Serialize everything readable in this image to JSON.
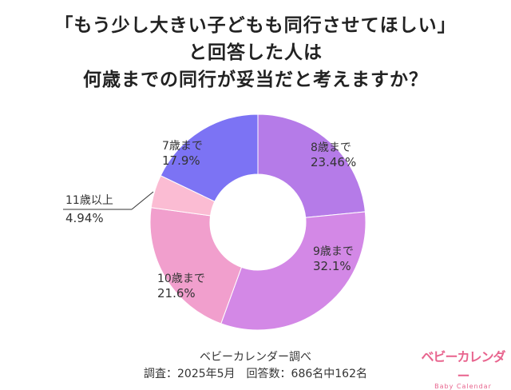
{
  "chart_data": {
    "type": "pie",
    "title_lines": [
      "「もう少し大きい子どもも同行させてほしい」",
      "と回答した人は",
      "何歳までの同行が妥当だと考えますか？"
    ],
    "slices": [
      {
        "label": "8歳まで",
        "value": 23.46,
        "value_text": "23.46%",
        "color": "#b57be8"
      },
      {
        "label": "9歳まで",
        "value": 32.1,
        "value_text": "32.1%",
        "color": "#d388e6"
      },
      {
        "label": "10歳まで",
        "value": 21.6,
        "value_text": "21.6%",
        "color": "#f19fcd"
      },
      {
        "label": "11歳以上",
        "value": 4.94,
        "value_text": "4.94%",
        "color": "#fbbcd3"
      },
      {
        "label": "7歳まで",
        "value": 17.9,
        "value_text": "17.9%",
        "color": "#7c73f4"
      }
    ]
  },
  "footer": {
    "source": "ベビーカレンダー調べ",
    "survey": "調査：2025年5月　回答数：686名中162名"
  },
  "logo": {
    "main": "ベビーカレンダー",
    "sub": "Baby Calendar"
  }
}
